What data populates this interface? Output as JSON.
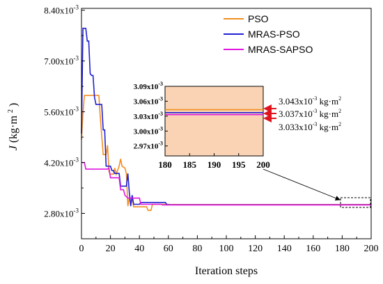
{
  "chart_data": {
    "type": "line",
    "xlabel": "Iteration steps",
    "ylabel_base": "J",
    "ylabel_unit": "(kg·m",
    "ylabel_sup": "2",
    "ylabel_close": ")",
    "xlim": [
      0,
      200
    ],
    "ylim": [
      0.0021,
      0.00845
    ],
    "x_ticks": [
      "0",
      "20",
      "40",
      "60",
      "80",
      "100",
      "120",
      "140",
      "160",
      "180",
      "200"
    ],
    "y_ticks": [
      {
        "value": 0.0084,
        "base": "8.40x10",
        "exp": "-3"
      },
      {
        "value": 0.007,
        "base": "7.00x10",
        "exp": "-3"
      },
      {
        "value": 0.0056,
        "base": "5.60x10",
        "exp": "-3"
      },
      {
        "value": 0.0042,
        "base": "4.20x10",
        "exp": "-3"
      },
      {
        "value": 0.0028,
        "base": "2.80x10",
        "exp": "-3"
      }
    ],
    "legend_position": "top-right",
    "series": [
      {
        "name": "PSO",
        "color": "#F28E1E",
        "points": [
          [
            0,
            0.00483
          ],
          [
            1,
            0.00555
          ],
          [
            2,
            0.00605
          ],
          [
            12,
            0.00605
          ],
          [
            13,
            0.00545
          ],
          [
            15,
            0.00442
          ],
          [
            17,
            0.00442
          ],
          [
            18,
            0.00468
          ],
          [
            19,
            0.00395
          ],
          [
            20,
            0.00388
          ],
          [
            22,
            0.00388
          ],
          [
            23,
            0.00405
          ],
          [
            24,
            0.00388
          ],
          [
            26,
            0.0041
          ],
          [
            27,
            0.0043
          ],
          [
            28,
            0.0041
          ],
          [
            30,
            0.00405
          ],
          [
            31,
            0.0039
          ],
          [
            32,
            0.003
          ],
          [
            33,
            0.00322
          ],
          [
            35,
            0.00322
          ],
          [
            36,
            0.00298
          ],
          [
            45,
            0.00298
          ],
          [
            46,
            0.00288
          ],
          [
            48,
            0.00288
          ],
          [
            49,
            0.00305
          ],
          [
            60,
            0.00305
          ],
          [
            61,
            0.003043
          ],
          [
            200,
            0.003043
          ]
        ]
      },
      {
        "name": "MRAS-PSO",
        "color": "#1F1FD4",
        "points": [
          [
            0,
            0.005
          ],
          [
            1,
            0.0079
          ],
          [
            3,
            0.0079
          ],
          [
            4,
            0.00755
          ],
          [
            5,
            0.00755
          ],
          [
            6,
            0.00665
          ],
          [
            7,
            0.0066
          ],
          [
            8,
            0.0066
          ],
          [
            9,
            0.006
          ],
          [
            10,
            0.0058
          ],
          [
            14,
            0.0058
          ],
          [
            15,
            0.0051
          ],
          [
            16,
            0.0051
          ],
          [
            17,
            0.0041
          ],
          [
            20,
            0.0041
          ],
          [
            21,
            0.00398
          ],
          [
            22,
            0.00398
          ],
          [
            23,
            0.0039
          ],
          [
            26,
            0.0039
          ],
          [
            27,
            0.00355
          ],
          [
            30,
            0.00355
          ],
          [
            31,
            0.00355
          ],
          [
            32,
            0.0039
          ],
          [
            33,
            0.0034
          ],
          [
            34,
            0.003
          ],
          [
            35,
            0.0033
          ],
          [
            36,
            0.00305
          ],
          [
            40,
            0.00305
          ],
          [
            41,
            0.0031
          ],
          [
            58,
            0.0031
          ],
          [
            59,
            0.003037
          ],
          [
            200,
            0.003037
          ]
        ]
      },
      {
        "name": "MRAS-SAPSO",
        "color": "#E014E0",
        "points": [
          [
            0,
            0.0042
          ],
          [
            2,
            0.0042
          ],
          [
            3,
            0.00402
          ],
          [
            18,
            0.00402
          ],
          [
            19,
            0.00405
          ],
          [
            20,
            0.00378
          ],
          [
            26,
            0.00378
          ],
          [
            27,
            0.00345
          ],
          [
            29,
            0.00345
          ],
          [
            30,
            0.0033
          ],
          [
            32,
            0.00322
          ],
          [
            40,
            0.00322
          ],
          [
            41,
            0.00305
          ],
          [
            55,
            0.00305
          ],
          [
            56,
            0.00303
          ],
          [
            60,
            0.00303
          ],
          [
            61,
            0.003033
          ],
          [
            200,
            0.003033
          ]
        ]
      }
    ],
    "inset": {
      "xlim": [
        180,
        200
      ],
      "ylim": [
        0.00295,
        0.00309
      ],
      "x_ticks": [
        "180",
        "185",
        "190",
        "195",
        "200"
      ],
      "y_ticks": [
        {
          "value": 0.00309,
          "base": "3.09x10",
          "exp": "-3"
        },
        {
          "value": 0.00306,
          "base": "3.06x10",
          "exp": "-3"
        },
        {
          "value": 0.00303,
          "base": "3.03x10",
          "exp": "-3"
        },
        {
          "value": 0.003,
          "base": "3.00x10",
          "exp": "-3"
        },
        {
          "value": 0.00297,
          "base": "2.97x10",
          "exp": "-3"
        }
      ],
      "background": "#FAD3B4",
      "annotations": [
        {
          "base": "3.043x10",
          "exp": "-3",
          "unit": " kg·m",
          "unit_sup": "2"
        },
        {
          "base": "3.037x10",
          "exp": "-3",
          "unit": " kg·m",
          "unit_sup": "2"
        },
        {
          "base": "3.033x10",
          "exp": "-3",
          "unit": " kg·m",
          "unit_sup": "2"
        }
      ],
      "arrow_color": "#E0141E"
    }
  }
}
